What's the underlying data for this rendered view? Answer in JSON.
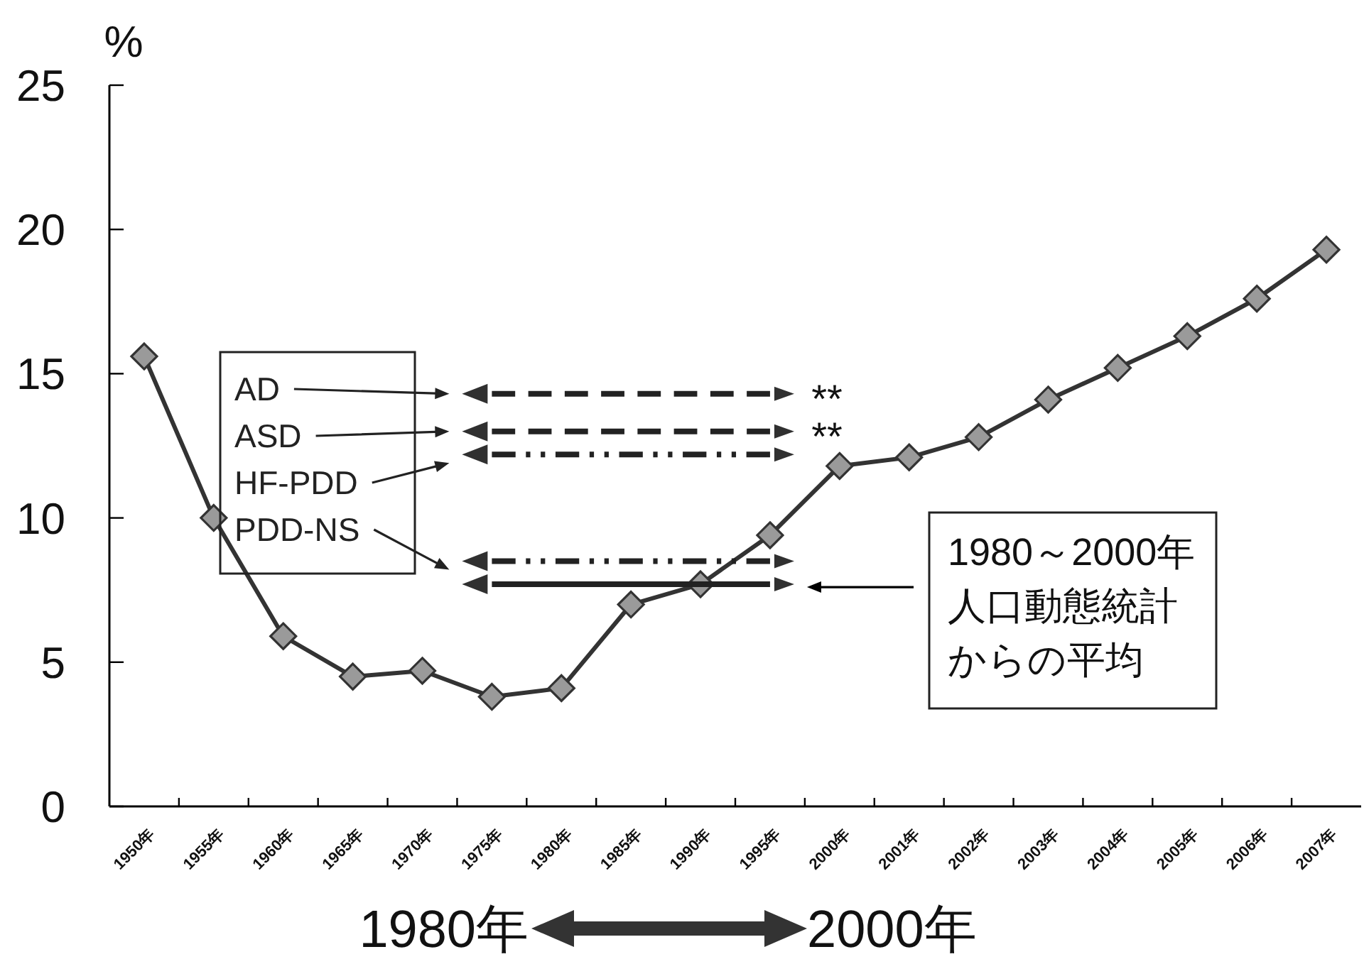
{
  "chart_data": {
    "type": "line",
    "ylabel": "%",
    "categories": [
      "1950年",
      "1955年",
      "1960年",
      "1965年",
      "1970年",
      "1975年",
      "1980年",
      "1985年",
      "1990年",
      "1995年",
      "2000年",
      "2001年",
      "2002年",
      "2003年",
      "2004年",
      "2005年",
      "2006年",
      "2007年"
    ],
    "series": [
      {
        "color": "#333333",
        "marker": "diamond",
        "values": [
          15.6,
          10.0,
          5.9,
          4.5,
          4.7,
          3.8,
          4.1,
          7.0,
          7.7,
          9.4,
          11.8,
          12.1,
          12.8,
          14.1,
          15.2,
          16.3,
          17.6,
          19.3
        ]
      },
      {
        "name": "AD",
        "color": "#222222",
        "marker": "none",
        "line_style": "dashed",
        "x": [
          "1975年",
          "1995年"
        ],
        "values": [
          14.3,
          14.3
        ]
      },
      {
        "name": "ASD",
        "color": "#222222",
        "marker": "none",
        "line_style": "dashed",
        "x": [
          "1975年",
          "1995年"
        ],
        "values": [
          13.0,
          13.0
        ]
      },
      {
        "name": "HF-PDD",
        "color": "#222222",
        "marker": "none",
        "line_style": "dotted",
        "x": [
          "1975年",
          "1995年"
        ],
        "values": [
          12.2,
          12.2
        ]
      },
      {
        "name": "PDD-NS",
        "color": "#222222",
        "marker": "none",
        "line_style": "dotted",
        "x": [
          "1975年",
          "1995年"
        ],
        "values": [
          8.5,
          8.5
        ]
      },
      {
        "color": "#222222",
        "marker": "none",
        "line_style": "solid",
        "x": [
          "1975年",
          "1995年"
        ],
        "values": [
          7.7,
          7.7
        ]
      }
    ],
    "ylim": [
      0,
      25
    ],
    "yticks": [
      0,
      5,
      10,
      15,
      20,
      25
    ],
    "grid": false,
    "legend": "left",
    "annotations": [
      "1980～2000年人口動態統計からの平均",
      "**",
      "**",
      "1980年",
      "2000年"
    ]
  }
}
